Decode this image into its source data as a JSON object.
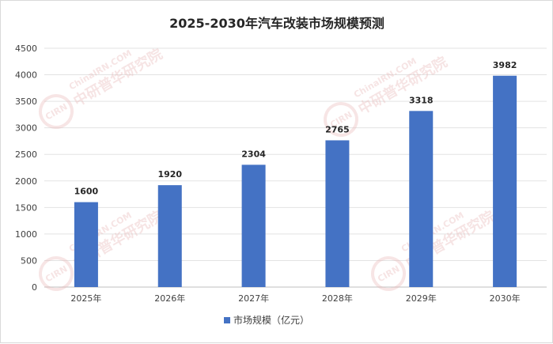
{
  "chart_data": {
    "type": "bar",
    "title": "2025-2030年汽车改装市场规模预测",
    "categories": [
      "2025年",
      "2026年",
      "2027年",
      "2028年",
      "2029年",
      "2030年"
    ],
    "series": [
      {
        "name": "市场规模（亿元）",
        "values": [
          1600,
          1920,
          2304,
          2765,
          3318,
          3982
        ],
        "color": "#4472c4"
      }
    ],
    "yticks": [
      "0",
      "500",
      "1000",
      "1500",
      "2000",
      "2500",
      "3000",
      "3500",
      "4000",
      "4500"
    ],
    "ylim": [
      0,
      4500
    ],
    "grid": true,
    "legend": "bottom"
  },
  "watermark": {
    "text": "中研普华研究院",
    "url": "ChinaIRN.COM",
    "logo": "CIRN"
  }
}
